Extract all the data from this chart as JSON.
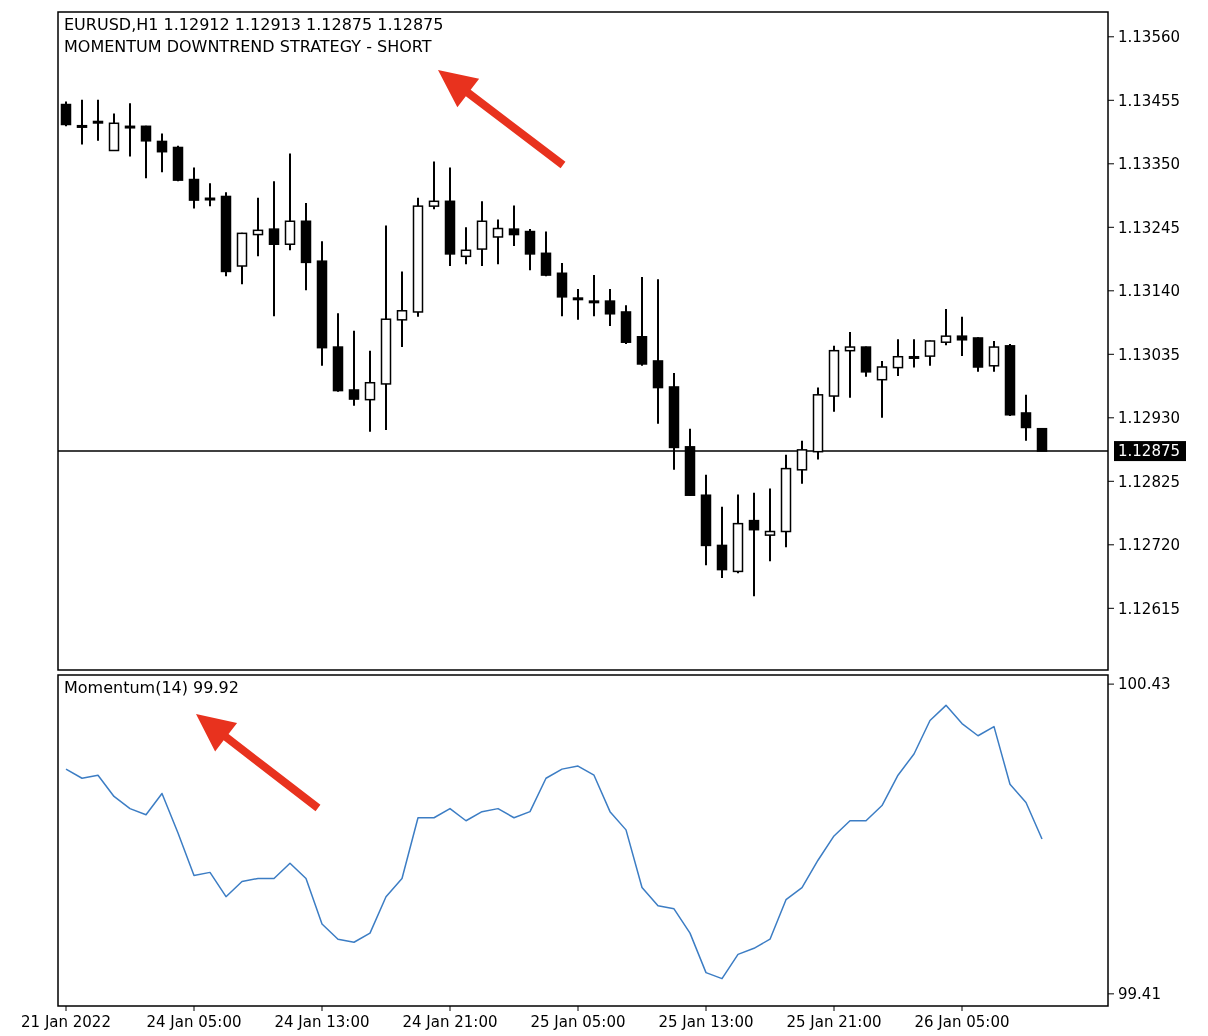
{
  "chart_data": [
    {
      "type": "candlestick",
      "title": "EURUSD,H1 1.12912 1.12913 1.12875 1.12875",
      "subtitle": "MOMENTUM DOWNTREND STRATEGY - SHORT",
      "categories": [
        null,
        null,
        null,
        null,
        null,
        null,
        null,
        null,
        null,
        null,
        null,
        null,
        null,
        null,
        null,
        null,
        null,
        null,
        null,
        null,
        null,
        null,
        null,
        null,
        null,
        null,
        null,
        null,
        null,
        null,
        null,
        null,
        null,
        null,
        null,
        null,
        null,
        null,
        null,
        null,
        null,
        null,
        null,
        null,
        null,
        null,
        null,
        null,
        null,
        null,
        null,
        null,
        null,
        null,
        null,
        null,
        null,
        null,
        null,
        null,
        null,
        null
      ],
      "ohlc": [
        [
          1.13448,
          1.13453,
          1.13412,
          1.13415
        ],
        [
          1.13413,
          1.13456,
          1.13382,
          1.13413
        ],
        [
          1.1342,
          1.13456,
          1.13388,
          1.1342
        ],
        [
          1.13372,
          1.13433,
          1.13372,
          1.13417
        ],
        [
          1.13412,
          1.1345,
          1.13362,
          1.13412
        ],
        [
          1.13412,
          1.13413,
          1.13326,
          1.13388
        ],
        [
          1.13387,
          1.134,
          1.13336,
          1.1337
        ],
        [
          1.13377,
          1.1338,
          1.13321,
          1.13323
        ],
        [
          1.13324,
          1.13344,
          1.13276,
          1.1329
        ],
        [
          1.13293,
          1.13318,
          1.1328,
          1.13292
        ],
        [
          1.13296,
          1.13303,
          1.13164,
          1.13172
        ],
        [
          1.13181,
          1.13236,
          1.13151,
          1.13235
        ],
        [
          1.13233,
          1.13294,
          1.13197,
          1.1324
        ],
        [
          1.13242,
          1.13321,
          1.13098,
          1.13217
        ],
        [
          1.13217,
          1.13367,
          1.13207,
          1.13255
        ],
        [
          1.13255,
          1.13285,
          1.13141,
          1.13187
        ],
        [
          1.13189,
          1.13222,
          1.13016,
          1.13046
        ],
        [
          1.13047,
          1.13103,
          1.12973,
          1.12975
        ],
        [
          1.12976,
          1.13074,
          1.1295,
          1.12961
        ],
        [
          1.1296,
          1.13041,
          1.12907,
          1.12988
        ],
        [
          1.12986,
          1.13248,
          1.1291,
          1.13093
        ],
        [
          1.13092,
          1.13172,
          1.13047,
          1.13107
        ],
        [
          1.13105,
          1.13294,
          1.13097,
          1.1328
        ],
        [
          1.1328,
          1.13354,
          1.13275,
          1.13288
        ],
        [
          1.13288,
          1.13344,
          1.13181,
          1.13201
        ],
        [
          1.13197,
          1.13245,
          1.13184,
          1.13207
        ],
        [
          1.13209,
          1.13288,
          1.13181,
          1.13255
        ],
        [
          1.13229,
          1.13258,
          1.13184,
          1.13243
        ],
        [
          1.13242,
          1.13281,
          1.13214,
          1.13233
        ],
        [
          1.13238,
          1.13242,
          1.13174,
          1.13201
        ],
        [
          1.13202,
          1.13238,
          1.13164,
          1.13166
        ],
        [
          1.13169,
          1.13186,
          1.13098,
          1.1313
        ],
        [
          1.13128,
          1.13143,
          1.13092,
          1.13127
        ],
        [
          1.13123,
          1.13166,
          1.13098,
          1.13123
        ],
        [
          1.13123,
          1.13143,
          1.13082,
          1.13102
        ],
        [
          1.13105,
          1.13116,
          1.13052,
          1.13055
        ],
        [
          1.13064,
          1.13163,
          1.13016,
          1.13019
        ],
        [
          1.13024,
          1.13159,
          1.1292,
          1.1298
        ],
        [
          1.12981,
          1.13004,
          1.12844,
          1.12881
        ],
        [
          1.12882,
          1.12912,
          1.12801,
          1.12802
        ],
        [
          1.12802,
          1.12836,
          1.12686,
          1.12719
        ],
        [
          1.12719,
          1.12783,
          1.12665,
          1.12679
        ],
        [
          1.12676,
          1.12803,
          1.12673,
          1.12755
        ],
        [
          1.1276,
          1.12806,
          1.12635,
          1.12745
        ],
        [
          1.12736,
          1.12813,
          1.12693,
          1.12742
        ],
        [
          1.12742,
          1.12869,
          1.12716,
          1.12846
        ],
        [
          1.12844,
          1.12892,
          1.12821,
          1.12877
        ],
        [
          1.12874,
          1.1298,
          1.12861,
          1.12968
        ],
        [
          1.12966,
          1.13049,
          1.1294,
          1.13041
        ],
        [
          1.13041,
          1.13072,
          1.12963,
          1.13047
        ],
        [
          1.13047,
          1.13048,
          1.12998,
          1.13006
        ],
        [
          1.12993,
          1.13024,
          1.1293,
          1.13014
        ],
        [
          1.13013,
          1.1306,
          1.12999,
          1.13031
        ],
        [
          1.13031,
          1.1306,
          1.13013,
          1.1303
        ],
        [
          1.13032,
          1.13058,
          1.13016,
          1.13057
        ],
        [
          1.13055,
          1.1311,
          1.1305,
          1.13065
        ],
        [
          1.13065,
          1.13097,
          1.13032,
          1.13059
        ],
        [
          1.13062,
          1.13063,
          1.13006,
          1.13014
        ],
        [
          1.13016,
          1.13057,
          1.13006,
          1.13047
        ],
        [
          1.13049,
          1.13052,
          1.12933,
          1.12935
        ],
        [
          1.12938,
          1.12968,
          1.12892,
          1.12914
        ],
        [
          1.12912,
          1.12913,
          1.12875,
          1.12875
        ]
      ],
      "ylim": [
        1.12513,
        1.13601
      ],
      "yticks": [
        {
          "value": 1.1356,
          "label": "1.13560"
        },
        {
          "value": 1.13455,
          "label": "1.13455"
        },
        {
          "value": 1.1335,
          "label": "1.13350"
        },
        {
          "value": 1.13245,
          "label": "1.13245"
        },
        {
          "value": 1.1314,
          "label": "1.13140"
        },
        {
          "value": 1.13035,
          "label": "1.13035"
        },
        {
          "value": 1.1293,
          "label": "1.12930"
        },
        {
          "value": 1.12825,
          "label": "1.12825"
        },
        {
          "value": 1.1272,
          "label": "1.12720"
        },
        {
          "value": 1.12615,
          "label": "1.12615"
        }
      ],
      "ref_lines": [
        {
          "axis": "y",
          "value": 1.12875,
          "label": "1.12875"
        }
      ]
    },
    {
      "type": "line",
      "title": "Momentum(14) 99.92",
      "categories": [
        "21 Jan 2022",
        null,
        null,
        null,
        null,
        null,
        null,
        null,
        "24 Jan 05:00",
        null,
        null,
        null,
        null,
        null,
        null,
        null,
        "24 Jan 13:00",
        null,
        null,
        null,
        null,
        null,
        null,
        null,
        "24 Jan 21:00",
        null,
        null,
        null,
        null,
        null,
        null,
        null,
        "25 Jan 05:00",
        null,
        null,
        null,
        null,
        null,
        null,
        null,
        "25 Jan 13:00",
        null,
        null,
        null,
        null,
        null,
        null,
        null,
        "25 Jan 21:00",
        null,
        null,
        null,
        null,
        null,
        null,
        null,
        "26 Jan 05:00",
        null,
        null,
        null,
        null,
        null
      ],
      "series": [
        {
          "color": "#3c7dc4",
          "values": [
            100.15,
            100.12,
            100.13,
            100.06,
            100.02,
            100.0,
            100.07,
            99.94,
            99.8,
            99.81,
            99.73,
            99.78,
            99.79,
            99.79,
            99.84,
            99.79,
            99.64,
            99.59,
            99.58,
            99.61,
            99.73,
            99.79,
            99.99,
            99.99,
            100.02,
            99.98,
            100.01,
            100.02,
            99.99,
            100.01,
            100.12,
            100.15,
            100.16,
            100.13,
            100.01,
            99.95,
            99.76,
            99.7,
            99.69,
            99.61,
            99.48,
            99.46,
            99.54,
            99.56,
            99.59,
            99.72,
            99.76,
            99.85,
            99.93,
            99.98,
            99.98,
            100.03,
            100.13,
            100.2,
            100.31,
            100.36,
            100.3,
            100.26,
            100.29,
            100.1,
            100.04,
            99.92
          ]
        }
      ],
      "ylim": [
        99.37,
        100.46
      ],
      "yticks": [
        100.43,
        99.41
      ]
    }
  ]
}
